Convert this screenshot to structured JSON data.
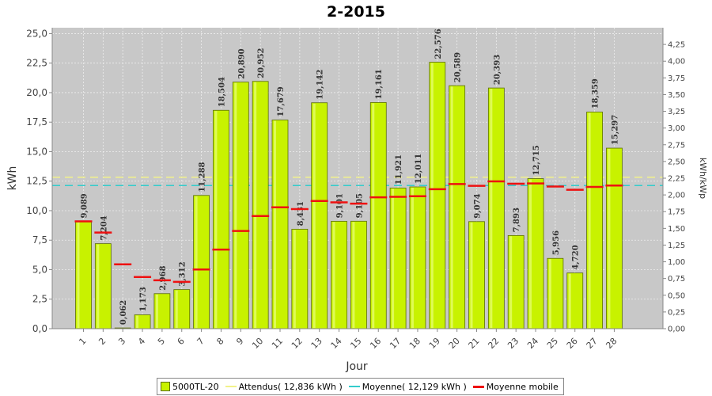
{
  "chart_data": {
    "type": "bar",
    "title": "2-2015",
    "xlabel": "Jour",
    "ylabel": "kWh",
    "ylabel_right": "kWh/kWp",
    "ylim": [
      0,
      25.5
    ],
    "ylim_right": [
      0,
      4.5
    ],
    "yticks": [
      "0,0",
      "2,5",
      "5,0",
      "7,5",
      "10,0",
      "12,5",
      "15,0",
      "17,5",
      "20,0",
      "22,5",
      "25,0"
    ],
    "yticks_right": [
      "0,00",
      "0,25",
      "0,50",
      "0,75",
      "1,00",
      "1,25",
      "1,50",
      "1,75",
      "2,00",
      "2,25",
      "2,50",
      "2,75",
      "3,00",
      "3,25",
      "3,50",
      "3,75",
      "4,00",
      "4,25"
    ],
    "categories": [
      "1",
      "2",
      "3",
      "4",
      "5",
      "6",
      "7",
      "8",
      "9",
      "10",
      "11",
      "12",
      "13",
      "14",
      "15",
      "16",
      "17",
      "18",
      "19",
      "20",
      "21",
      "22",
      "23",
      "24",
      "25",
      "26",
      "27",
      "28"
    ],
    "series": [
      {
        "name": "5000TL-20",
        "values": [
          9.089,
          7.204,
          0.062,
          1.173,
          2.968,
          3.312,
          11.288,
          18.504,
          20.89,
          20.952,
          17.679,
          8.431,
          19.142,
          9.101,
          9.105,
          19.161,
          11.921,
          12.011,
          22.576,
          20.589,
          9.074,
          20.393,
          7.893,
          12.715,
          5.956,
          4.72,
          18.359,
          15.297
        ],
        "labels": [
          "9,089",
          "7,204",
          "0,062",
          "1,173",
          "2,968",
          "3,312",
          "11,288",
          "18,504",
          "20,890",
          "20,952",
          "17,679",
          "8,431",
          "19,142",
          "9,101",
          "9,105",
          "19,161",
          "11,921",
          "12,011",
          "22,576",
          "20,589",
          "9,074",
          "20,393",
          "7,893",
          "12,715",
          "5,956",
          "4,720",
          "18,359",
          "15,297"
        ],
        "color": "#c8f200"
      },
      {
        "name": "Moyenne mobile",
        "values": [
          9.089,
          8.147,
          5.452,
          4.382,
          4.099,
          3.968,
          5.015,
          6.701,
          8.277,
          9.545,
          10.285,
          10.13,
          10.823,
          10.7,
          10.593,
          11.129,
          11.176,
          11.223,
          11.82,
          12.258,
          12.107,
          12.484,
          12.284,
          12.302,
          12.048,
          11.766,
          12.01,
          12.129
        ],
        "color": "#ee1111"
      }
    ],
    "legend": [
      {
        "label": "5000TL-20",
        "kind": "box",
        "color": "#c8f200"
      },
      {
        "label": "Attendus( 12,836 kWh )",
        "kind": "line",
        "color": "#f2f28a",
        "value": 12.836
      },
      {
        "label": "Moyenne( 12,129 kWh )",
        "kind": "line",
        "color": "#33cccc",
        "value": 12.129
      },
      {
        "label": "Moyenne mobile",
        "kind": "line",
        "color": "#ee1111"
      }
    ],
    "legend_position": "bottom",
    "grid": true,
    "plot_background": "#c8c8c8"
  }
}
